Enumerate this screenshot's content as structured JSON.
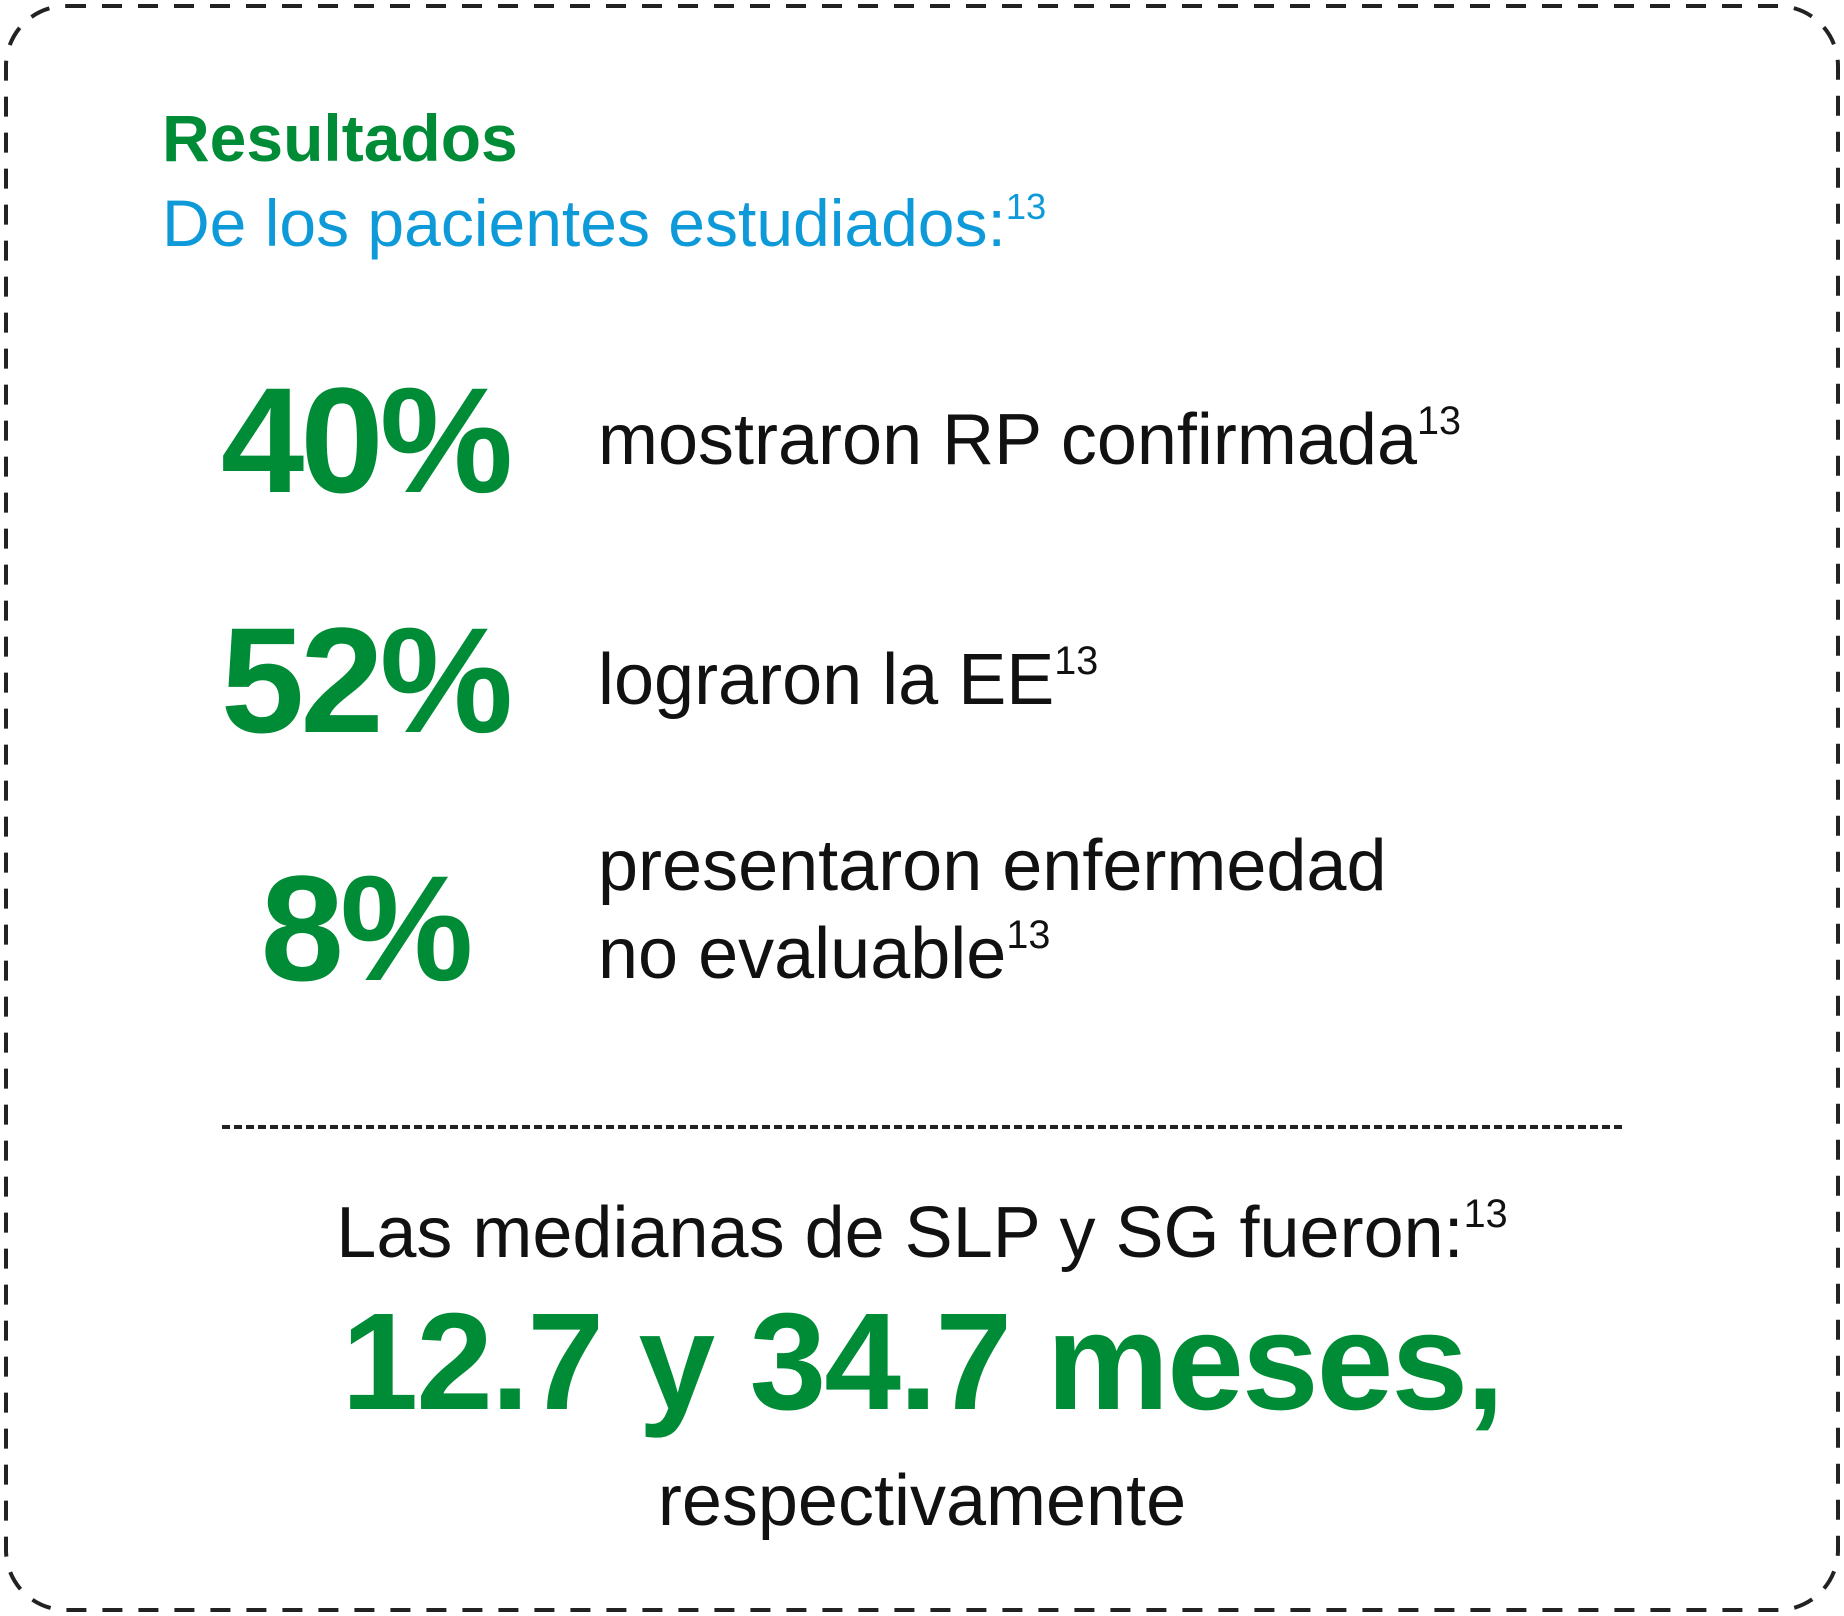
{
  "header": {
    "title": "Resultados",
    "subtitle": "De los pacientes estudiados:",
    "subtitle_ref": "13"
  },
  "stats": [
    {
      "value": "40%",
      "description_line1": "mostraron RP confirmada",
      "description_line2": "",
      "ref": "13"
    },
    {
      "value": "52%",
      "description_line1": "lograron la EE",
      "description_line2": "",
      "ref": "13"
    },
    {
      "value": "8%",
      "description_line1": "presentaron enfermedad",
      "description_line2": "no evaluable",
      "ref": "13"
    }
  ],
  "medians": {
    "label": "Las medianas de SLP y SG fueron:",
    "label_ref": "13",
    "value": "12.7 y 34.7 meses,",
    "note": "respectivamente"
  },
  "colors": {
    "green": "#008c37",
    "blue": "#0e9ad8",
    "text": "#111111",
    "border": "#222222"
  }
}
